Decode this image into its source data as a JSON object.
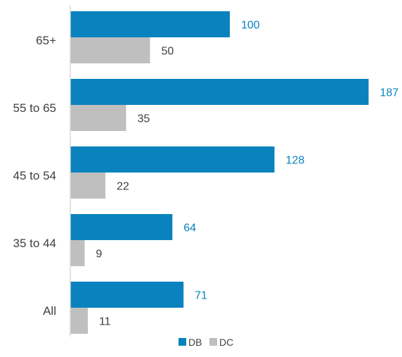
{
  "chart_data": {
    "type": "bar",
    "orientation": "horizontal",
    "categories": [
      "65+",
      "55 to 65",
      "45 to 54",
      "35 to 44",
      "All"
    ],
    "series": [
      {
        "name": "DB",
        "values": [
          100,
          187,
          128,
          64,
          71
        ],
        "color": "#0a82be",
        "label_color": "#0a82be"
      },
      {
        "name": "DC",
        "values": [
          50,
          35,
          22,
          9,
          11
        ],
        "color": "#bfbfbf",
        "label_color": "#404040"
      }
    ],
    "xlim": [
      0,
      200
    ],
    "grid": false,
    "legend_position": "bottom",
    "data_labels": true
  },
  "colors": {
    "axis": "#d9d9d9",
    "category_label": "#404040",
    "legend_text": "#404040"
  }
}
